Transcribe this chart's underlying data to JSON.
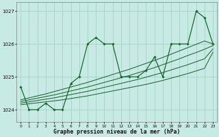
{
  "title": "Graphe pression niveau de la mer (hPa)",
  "bg_color": "#c8eae4",
  "grid_color": "#a0ccbf",
  "line_color": "#1a6630",
  "xlim": [
    -0.5,
    23.5
  ],
  "ylim": [
    1023.62,
    1027.28
  ],
  "yticks": [
    1024,
    1025,
    1026,
    1027
  ],
  "xtick_labels": [
    "0",
    "1",
    "2",
    "3",
    "4",
    "5",
    "6",
    "7",
    "8",
    "9",
    "10",
    "11",
    "12",
    "13",
    "14",
    "15",
    "16",
    "17",
    "18",
    "19",
    "20",
    "21",
    "22",
    "23"
  ],
  "main_y": [
    1024.7,
    1024.0,
    1024.0,
    1024.2,
    1024.0,
    1024.0,
    1024.8,
    1025.0,
    1026.0,
    1026.2,
    1026.0,
    1026.0,
    1025.0,
    1025.0,
    1025.0,
    1025.2,
    1025.6,
    1025.0,
    1026.0,
    1026.0,
    1026.0,
    1027.0,
    1026.8,
    1026.0
  ],
  "trend_lines": [
    [
      1024.15,
      1024.18,
      1024.21,
      1024.24,
      1024.27,
      1024.3,
      1024.34,
      1024.38,
      1024.42,
      1024.47,
      1024.52,
      1024.57,
      1024.62,
      1024.67,
      1024.72,
      1024.77,
      1024.83,
      1024.89,
      1024.96,
      1025.03,
      1025.1,
      1025.18,
      1025.26,
      1025.75
    ],
    [
      1024.2,
      1024.24,
      1024.28,
      1024.32,
      1024.36,
      1024.41,
      1024.46,
      1024.51,
      1024.56,
      1024.62,
      1024.68,
      1024.74,
      1024.8,
      1024.86,
      1024.92,
      1024.99,
      1025.06,
      1025.13,
      1025.21,
      1025.29,
      1025.37,
      1025.46,
      1025.55,
      1025.85
    ],
    [
      1024.25,
      1024.3,
      1024.35,
      1024.4,
      1024.45,
      1024.51,
      1024.57,
      1024.63,
      1024.69,
      1024.76,
      1024.83,
      1024.9,
      1024.97,
      1025.04,
      1025.12,
      1025.2,
      1025.28,
      1025.37,
      1025.46,
      1025.55,
      1025.65,
      1025.74,
      1025.84,
      1025.95
    ],
    [
      1024.3,
      1024.36,
      1024.42,
      1024.48,
      1024.55,
      1024.62,
      1024.69,
      1024.76,
      1024.83,
      1024.91,
      1024.99,
      1025.07,
      1025.15,
      1025.23,
      1025.32,
      1025.41,
      1025.5,
      1025.59,
      1025.69,
      1025.79,
      1025.89,
      1025.99,
      1026.09,
      1026.0
    ]
  ]
}
